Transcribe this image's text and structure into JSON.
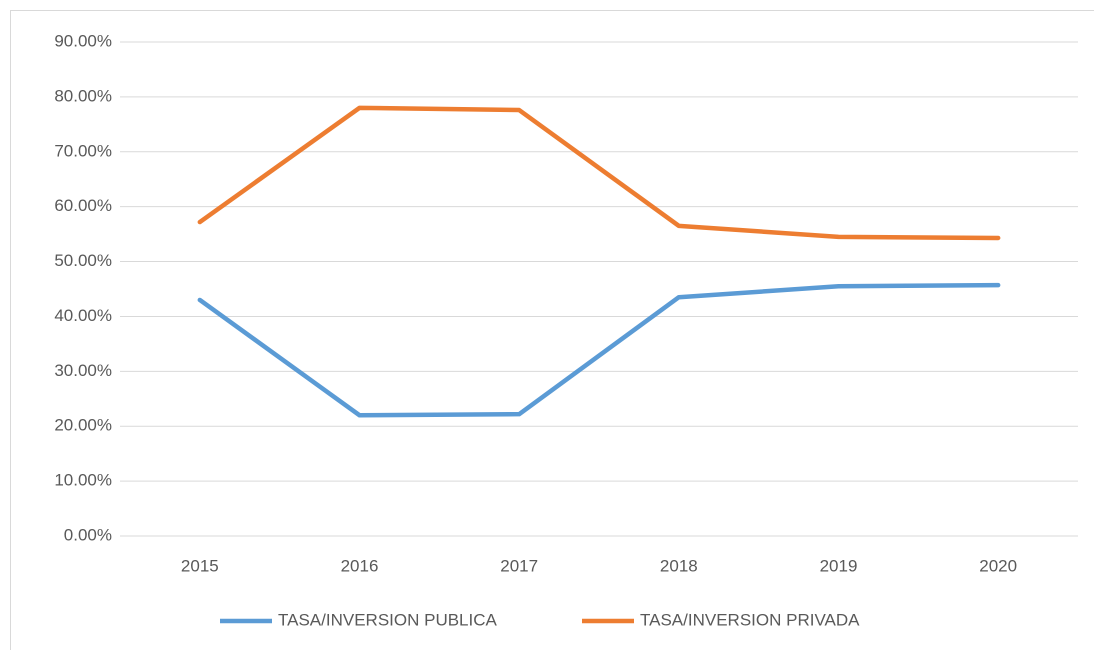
{
  "chart_data": {
    "type": "line",
    "categories": [
      "2015",
      "2016",
      "2017",
      "2018",
      "2019",
      "2020"
    ],
    "series": [
      {
        "name": "TASA/INVERSION PUBLICA",
        "color": "#5b9bd5",
        "values": [
          43.0,
          22.0,
          22.2,
          43.5,
          45.5,
          45.7
        ]
      },
      {
        "name": "TASA/INVERSION PRIVADA",
        "color": "#ed7d31",
        "values": [
          57.2,
          78.0,
          77.6,
          56.5,
          54.5,
          54.3
        ]
      }
    ],
    "ylim": [
      0,
      90
    ],
    "yticks": [
      {
        "value": 0,
        "label": "0.00%"
      },
      {
        "value": 10,
        "label": "10.00%"
      },
      {
        "value": 20,
        "label": "20.00%"
      },
      {
        "value": 30,
        "label": "30.00%"
      },
      {
        "value": 40,
        "label": "40.00%"
      },
      {
        "value": 50,
        "label": "50.00%"
      },
      {
        "value": 60,
        "label": "60.00%"
      },
      {
        "value": 70,
        "label": "70.00%"
      },
      {
        "value": 80,
        "label": "80.00%"
      },
      {
        "value": 90,
        "label": "90.00%"
      }
    ],
    "grid": true,
    "legend": "bottom"
  }
}
